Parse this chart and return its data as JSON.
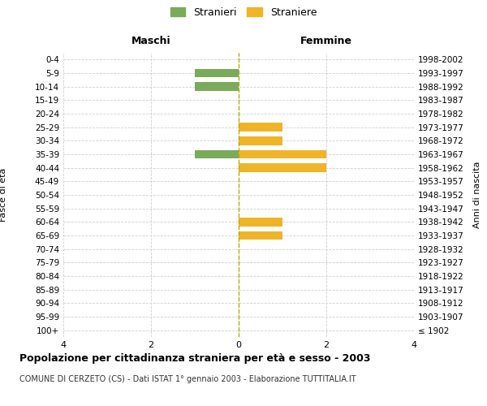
{
  "age_groups": [
    "100+",
    "95-99",
    "90-94",
    "85-89",
    "80-84",
    "75-79",
    "70-74",
    "65-69",
    "60-64",
    "55-59",
    "50-54",
    "45-49",
    "40-44",
    "35-39",
    "30-34",
    "25-29",
    "20-24",
    "15-19",
    "10-14",
    "5-9",
    "0-4"
  ],
  "birth_years": [
    "≤ 1902",
    "1903-1907",
    "1908-1912",
    "1913-1917",
    "1918-1922",
    "1923-1927",
    "1928-1932",
    "1933-1937",
    "1938-1942",
    "1943-1947",
    "1948-1952",
    "1953-1957",
    "1958-1962",
    "1963-1967",
    "1968-1972",
    "1973-1977",
    "1978-1982",
    "1983-1987",
    "1988-1992",
    "1993-1997",
    "1998-2002"
  ],
  "males": [
    0,
    0,
    0,
    0,
    0,
    0,
    0,
    0,
    0,
    0,
    0,
    0,
    0,
    1,
    0,
    0,
    0,
    0,
    1,
    1,
    0
  ],
  "females": [
    0,
    0,
    0,
    0,
    0,
    0,
    0,
    1,
    1,
    0,
    0,
    0,
    2,
    2,
    1,
    1,
    0,
    0,
    0,
    0,
    0
  ],
  "male_color": "#7aab5a",
  "female_color": "#f0b429",
  "title": "Popolazione per cittadinanza straniera per età e sesso - 2003",
  "subtitle": "COMUNE DI CERZETO (CS) - Dati ISTAT 1° gennaio 2003 - Elaborazione TUTTITALIA.IT",
  "xlabel_left": "Maschi",
  "xlabel_right": "Femmine",
  "ylabel_left": "Fasce di età",
  "ylabel_right": "Anni di nascita",
  "legend_stranieri": "Stranieri",
  "legend_straniere": "Straniere",
  "xlim": 4,
  "bg_color": "#ffffff",
  "grid_color": "#d0d0d0",
  "dashed_line_color": "#b0b000"
}
